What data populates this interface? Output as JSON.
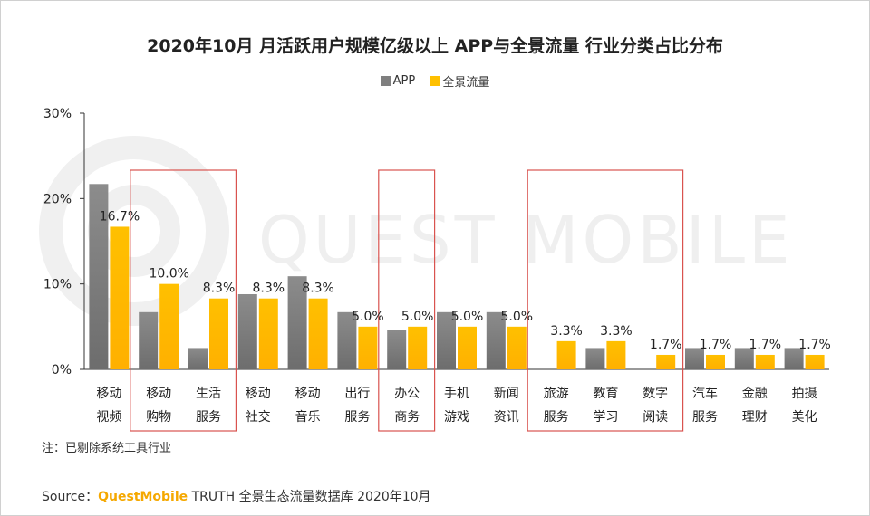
{
  "title": "2020年10月 月活跃用户规模亿级以上 APP与全景流量 行业分类占比分布",
  "note": "注：已剔除系统工具行业",
  "source": {
    "prefix": "Source：",
    "brand": "QuestMobile",
    "suffix": " TRUTH 全景生态流量数据库 2020年10月"
  },
  "watermark": "QUEST MOBILE",
  "colors": {
    "app": "#7f7f7f",
    "app_light": "#a9a9a9",
    "panorama": "#ffc000",
    "panorama_light": "#ffd54a",
    "highlight_box": "#d9534f",
    "axis": "#333333"
  },
  "chart_data": {
    "type": "bar",
    "title": "2020年10月 月活跃用户规模亿级以上 APP与全景流量 行业分类占比分布",
    "categories": [
      [
        "移动",
        "视频"
      ],
      [
        "移动",
        "购物"
      ],
      [
        "生活",
        "服务"
      ],
      [
        "移动",
        "社交"
      ],
      [
        "移动",
        "音乐"
      ],
      [
        "出行",
        "服务"
      ],
      [
        "办公",
        "商务"
      ],
      [
        "手机",
        "游戏"
      ],
      [
        "新闻",
        "资讯"
      ],
      [
        "旅游",
        "服务"
      ],
      [
        "教育",
        "学习"
      ],
      [
        "数字",
        "阅读"
      ],
      [
        "汽车",
        "服务"
      ],
      [
        "金融",
        "理财"
      ],
      [
        "拍摄",
        "美化"
      ]
    ],
    "series": [
      {
        "name": "APP",
        "values": [
          21.7,
          6.7,
          2.5,
          8.8,
          10.9,
          6.7,
          4.6,
          6.7,
          6.7,
          0,
          2.5,
          0,
          2.5,
          2.5,
          2.5
        ]
      },
      {
        "name": "全景流量",
        "values": [
          16.7,
          10.0,
          8.3,
          8.3,
          8.3,
          5.0,
          5.0,
          5.0,
          5.0,
          3.3,
          3.3,
          1.7,
          1.7,
          1.7,
          1.7
        ],
        "labels": [
          "16.7%",
          "10.0%",
          "8.3%",
          "8.3%",
          "8.3%",
          "5.0%",
          "5.0%",
          "5.0%",
          "5.0%",
          "3.3%",
          "3.3%",
          "1.7%",
          "1.7%",
          "1.7%",
          "1.7%"
        ]
      }
    ],
    "y_ticks": [
      "0%",
      "10%",
      "20%",
      "30%"
    ],
    "ylim": [
      0,
      30
    ],
    "legend_position": "top-center",
    "highlight_groups": [
      [
        1,
        2
      ],
      [
        6,
        6
      ],
      [
        9,
        11
      ]
    ],
    "grid": false
  }
}
